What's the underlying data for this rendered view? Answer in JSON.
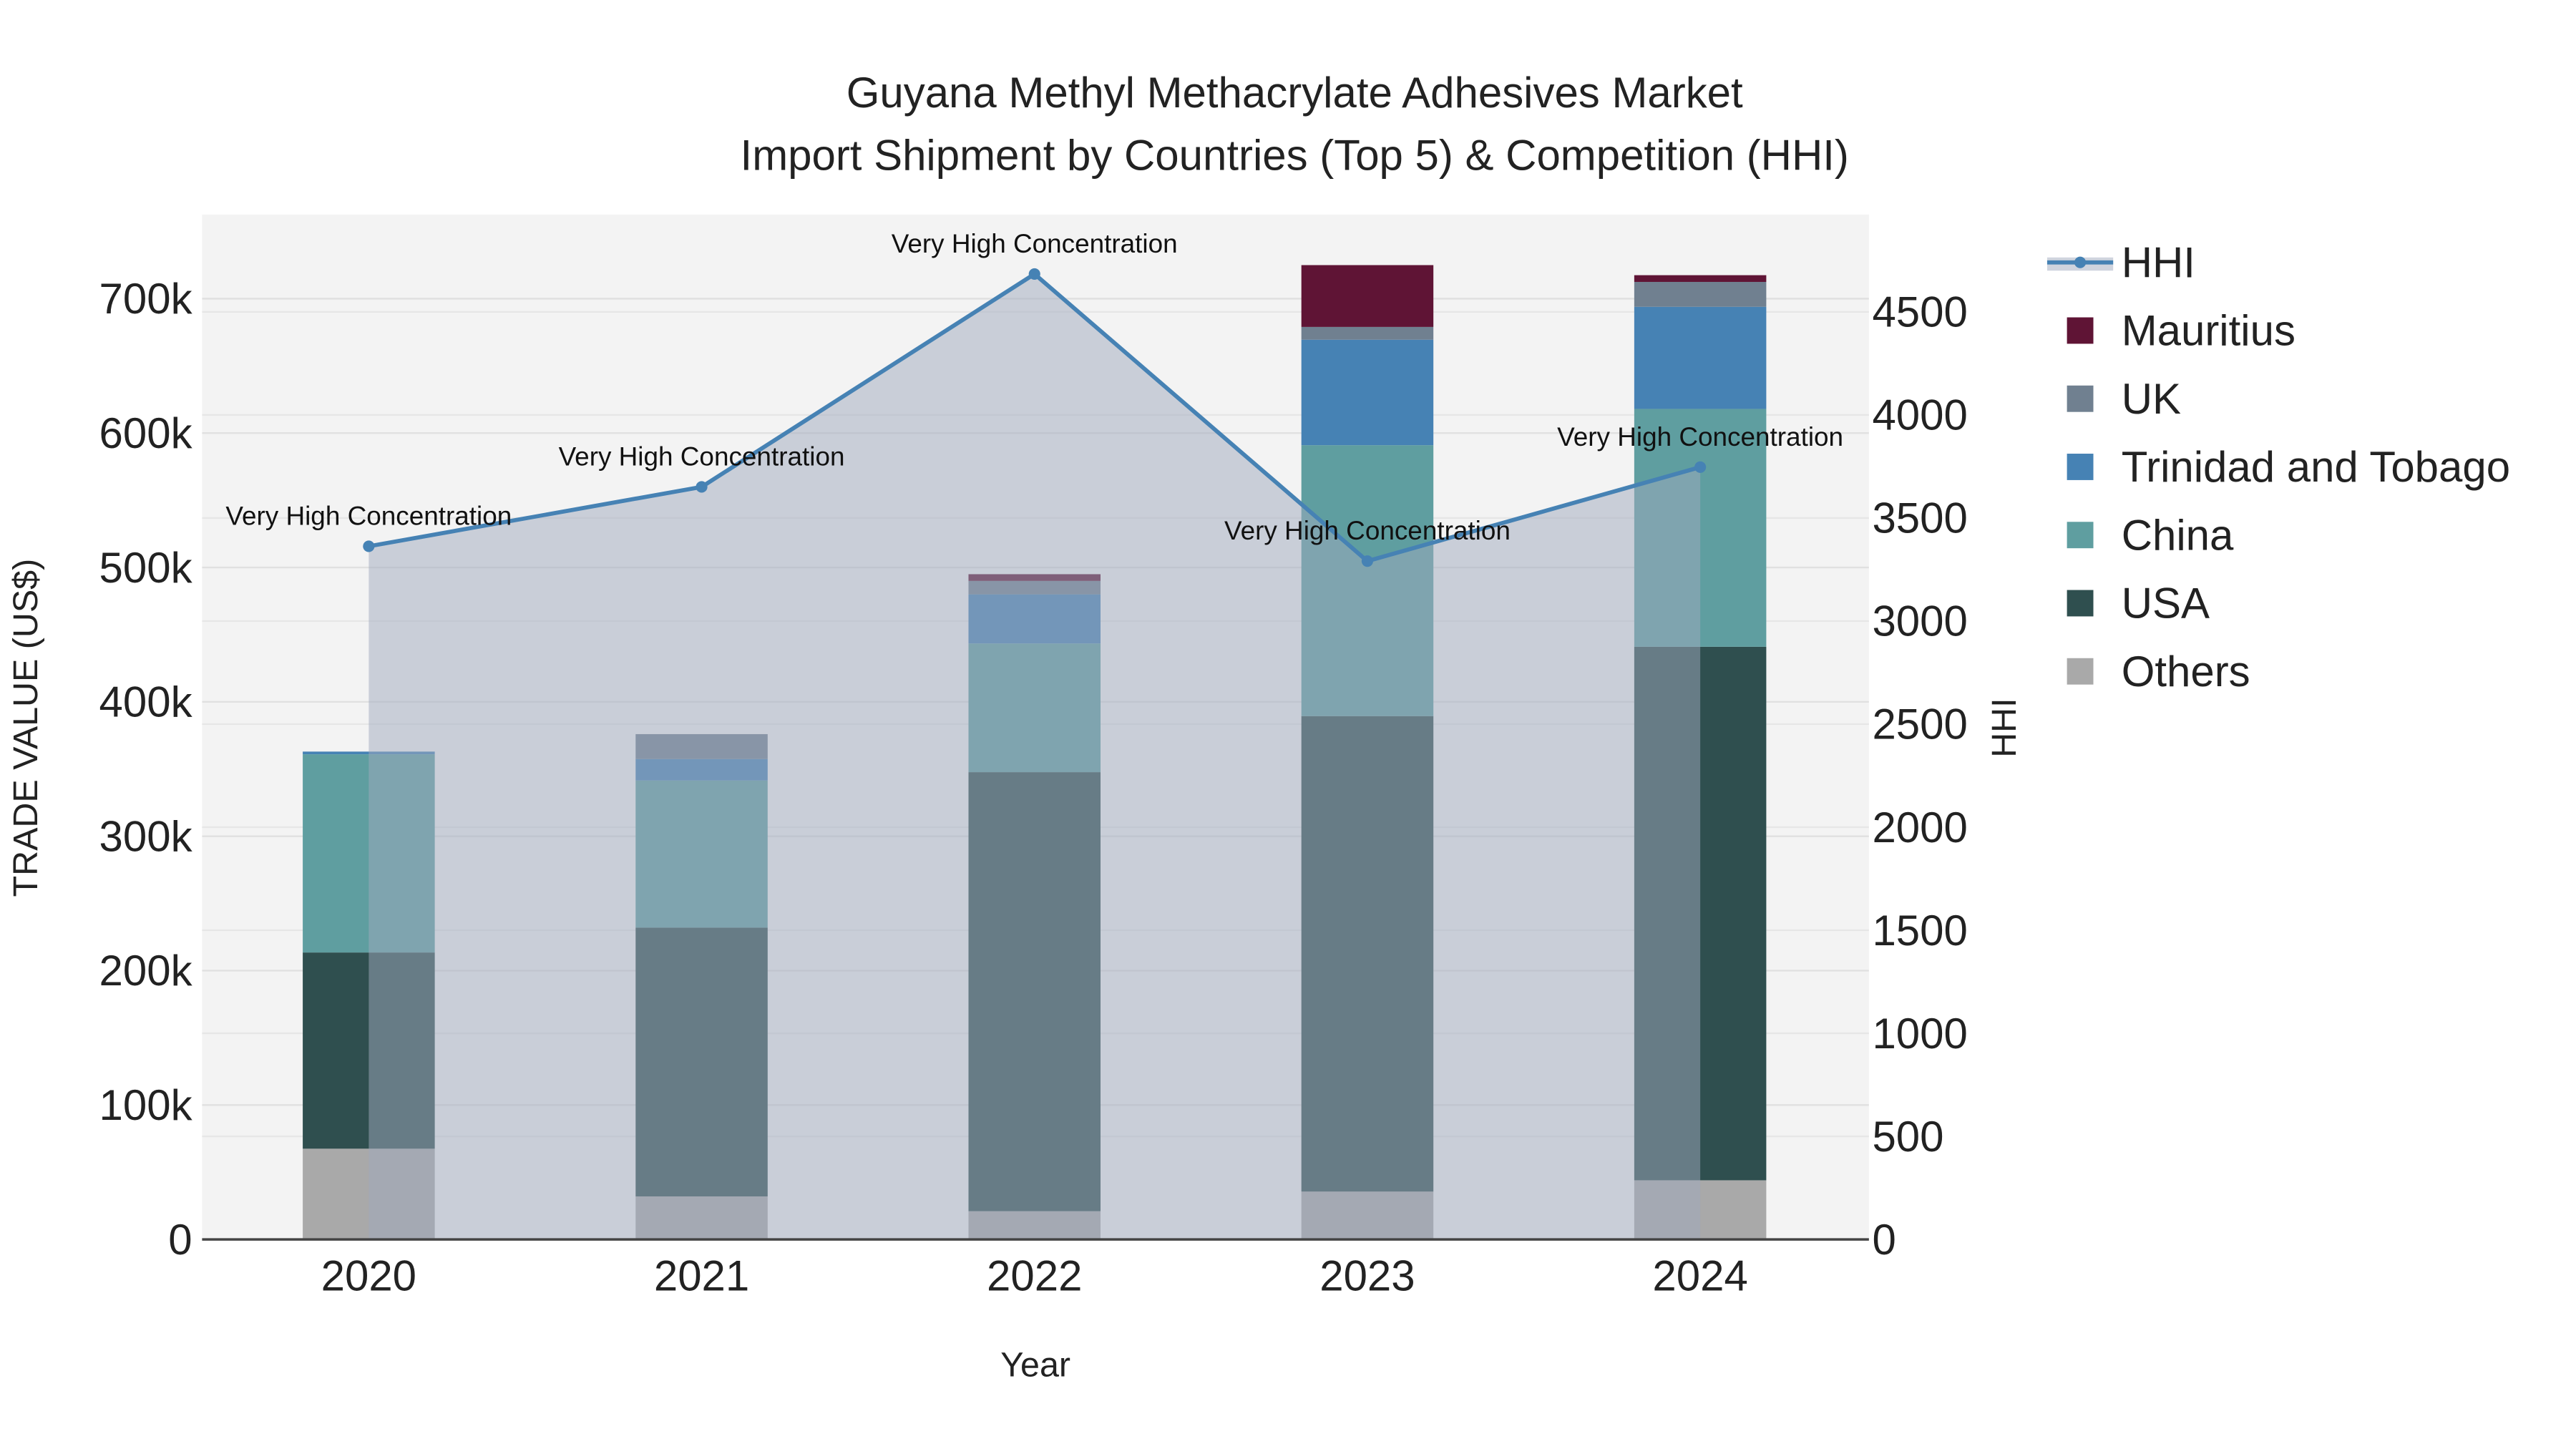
{
  "chart_data": {
    "type": "bar",
    "title": "Guyana Methyl Methacrylate Adhesives Market",
    "subtitle": "Import Shipment by Countries (Top 5) & Competition (HHI)",
    "xlabel": "Year",
    "ylabel": "TRADE VALUE (US$)",
    "y2label": "HHI",
    "categories": [
      "2020",
      "2021",
      "2022",
      "2023",
      "2024"
    ],
    "ylim": [
      0,
      760000
    ],
    "y2lim": [
      0,
      4970
    ],
    "yticks": [
      0,
      100000,
      200000,
      300000,
      400000,
      500000,
      600000,
      700000
    ],
    "ytick_labels": [
      "0",
      "100k",
      "200k",
      "300k",
      "400k",
      "500k",
      "600k",
      "700k"
    ],
    "y2ticks": [
      0,
      500,
      1000,
      1500,
      2000,
      2500,
      3000,
      3500,
      4000,
      4500
    ],
    "y2tick_labels": [
      "0",
      "500",
      "1000",
      "1500",
      "2000",
      "2500",
      "3000",
      "3500",
      "4000",
      "4500"
    ],
    "stack_order": [
      "Others",
      "USA",
      "China",
      "Trinidad and Tobago",
      "UK",
      "Mauritius"
    ],
    "series": [
      {
        "name": "Others",
        "color": "#a9a9a9",
        "values": [
          67500,
          32000,
          21000,
          35600,
          44000
        ]
      },
      {
        "name": "USA",
        "color": "#2f4f4f",
        "values": [
          146000,
          200000,
          326700,
          353800,
          397000
        ]
      },
      {
        "name": "China",
        "color": "#5f9ea0",
        "values": [
          147500,
          109500,
          95800,
          201600,
          177000
        ]
      },
      {
        "name": "Trinidad and Tobago",
        "color": "#4682b4",
        "values": [
          2000,
          16000,
          36500,
          78500,
          76000
        ]
      },
      {
        "name": "UK",
        "color": "#708090",
        "values": [
          0,
          18500,
          10000,
          9500,
          18500
        ]
      },
      {
        "name": "Mauritius",
        "color": "#5f1435",
        "values": [
          0,
          0,
          5000,
          46000,
          5000
        ]
      }
    ],
    "hhi": {
      "name": "HHI",
      "color": "#4682b4",
      "values": [
        3363,
        3651,
        4684,
        3291,
        3747
      ],
      "annotations": [
        "Very High Concentration",
        "Very High Concentration",
        "Very High Concentration",
        "Very High Concentration",
        "Very High Concentration"
      ]
    },
    "legend": [
      "HHI",
      "Mauritius",
      "UK",
      "Trinidad and Tobago",
      "China",
      "USA",
      "Others"
    ],
    "legend_placement": "right",
    "grid": true
  }
}
